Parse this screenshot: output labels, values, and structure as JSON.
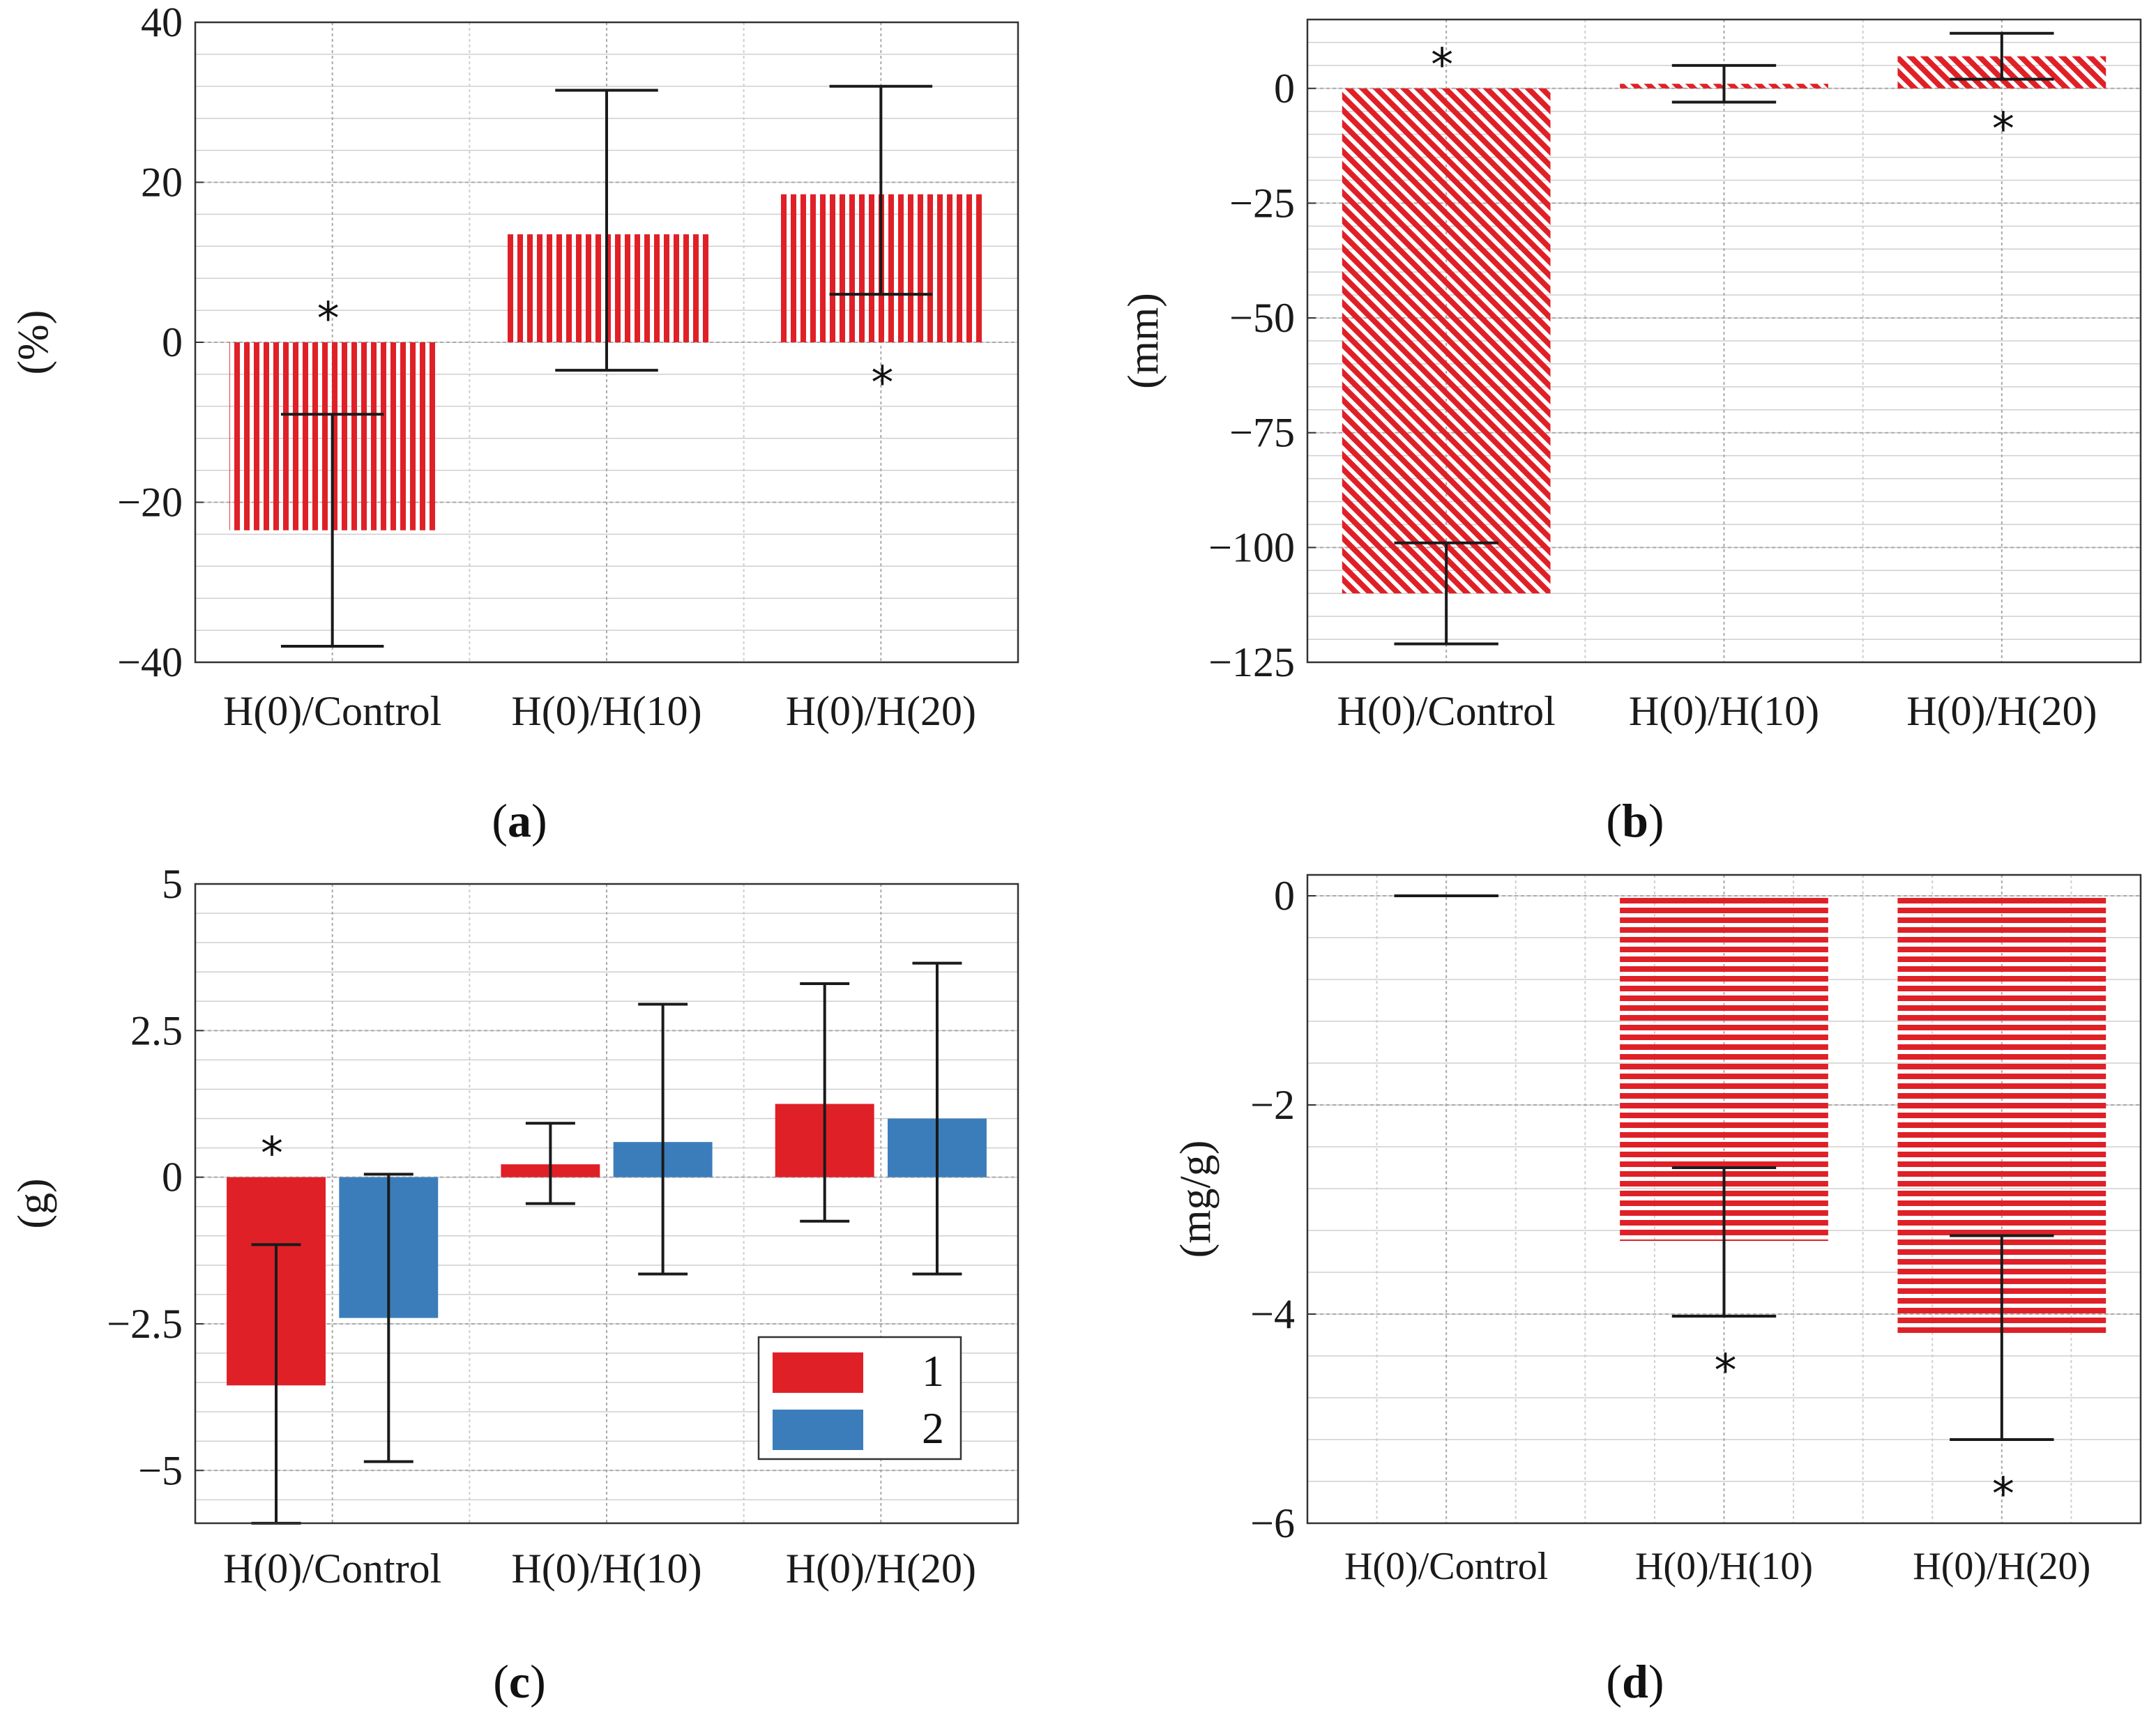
{
  "colors": {
    "red": "#e02027",
    "blue": "#3b7dbb",
    "grid_major": "#a9a9a9",
    "grid_minor": "#cfcfcf",
    "axis": "#333333",
    "error": "#1a1a1a"
  },
  "chart_data": [
    {
      "id": "a",
      "panel_label": "a",
      "type": "bar",
      "pattern": "vertical-stripes",
      "categories": [
        "H(0)/Control",
        "H(0)/H(10)",
        "H(0)/H(20)"
      ],
      "ylabel": "(%)",
      "ylim": [
        -40,
        40
      ],
      "yticks": [
        -40,
        -20,
        0,
        20,
        40
      ],
      "ytick_labels": [
        "−40",
        "−20",
        "0",
        "20",
        "40"
      ],
      "grid": true,
      "series": [
        {
          "name": "mean",
          "values": [
            -23.5,
            13.5,
            18.5
          ],
          "err_low": [
            -38,
            -3.5,
            6
          ],
          "err_high": [
            -9,
            31.5,
            32
          ],
          "stars": [
            "top",
            "",
            "bottom"
          ]
        }
      ]
    },
    {
      "id": "b",
      "panel_label": "b",
      "type": "bar",
      "pattern": "diagonal-stripes",
      "categories": [
        "H(0)/Control",
        "H(0)/H(10)",
        "H(0)/H(20)"
      ],
      "ylabel": "(mm)",
      "ylim": [
        -125,
        15
      ],
      "yticks": [
        -125,
        -100,
        -75,
        -50,
        -25,
        0
      ],
      "ytick_labels": [
        "−125",
        "−100",
        "−75",
        "−50",
        "−25",
        "0"
      ],
      "grid": true,
      "series": [
        {
          "name": "mean",
          "values": [
            -110,
            1,
            7
          ],
          "err_low": [
            -121,
            -3,
            2
          ],
          "err_high": [
            -99,
            5,
            12
          ],
          "stars": [
            "top",
            "",
            "bottom"
          ]
        }
      ]
    },
    {
      "id": "c",
      "panel_label": "c",
      "type": "bar",
      "pattern": "solid",
      "categories": [
        "H(0)/Control",
        "H(0)/H(10)",
        "H(0)/H(20)"
      ],
      "ylabel": "(g)",
      "ylim": [
        -5.9,
        5
      ],
      "yticks": [
        -5,
        -2.5,
        0,
        2.5,
        5
      ],
      "ytick_labels": [
        "−5",
        "−2.5",
        "0",
        "2.5",
        "5"
      ],
      "grid": true,
      "legend": {
        "placement": "bottom-right",
        "entries": [
          "1",
          "2"
        ]
      },
      "series": [
        {
          "name": "1",
          "values": [
            -3.55,
            0.22,
            1.25
          ],
          "err_low": [
            -5.9,
            -0.45,
            -0.75
          ],
          "err_high": [
            -1.15,
            0.92,
            3.3
          ],
          "stars": [
            "top",
            "",
            ""
          ]
        },
        {
          "name": "2",
          "values": [
            -2.4,
            0.6,
            1.0
          ],
          "err_low": [
            -4.85,
            -1.65,
            -1.65
          ],
          "err_high": [
            0.05,
            2.95,
            3.65
          ],
          "stars": [
            "",
            "",
            ""
          ]
        }
      ]
    },
    {
      "id": "d",
      "panel_label": "d",
      "type": "bar",
      "pattern": "horizontal-stripes",
      "categories": [
        "H(0)/Control",
        "H(0)/H(10)",
        "H(0)/H(20)"
      ],
      "ylabel": "(mg/g)",
      "ylim": [
        -6,
        0.2
      ],
      "yticks": [
        -6,
        -4,
        -2,
        0
      ],
      "ytick_labels": [
        "−6",
        "−4",
        "−2",
        "0"
      ],
      "grid": true,
      "series": [
        {
          "name": "mean",
          "values": [
            0,
            -3.3,
            -4.2
          ],
          "err_low": [
            0,
            -4.02,
            -5.2
          ],
          "err_high": [
            0,
            -2.6,
            -3.25
          ],
          "stars": [
            "",
            "bottom",
            "bottom"
          ]
        }
      ]
    }
  ]
}
